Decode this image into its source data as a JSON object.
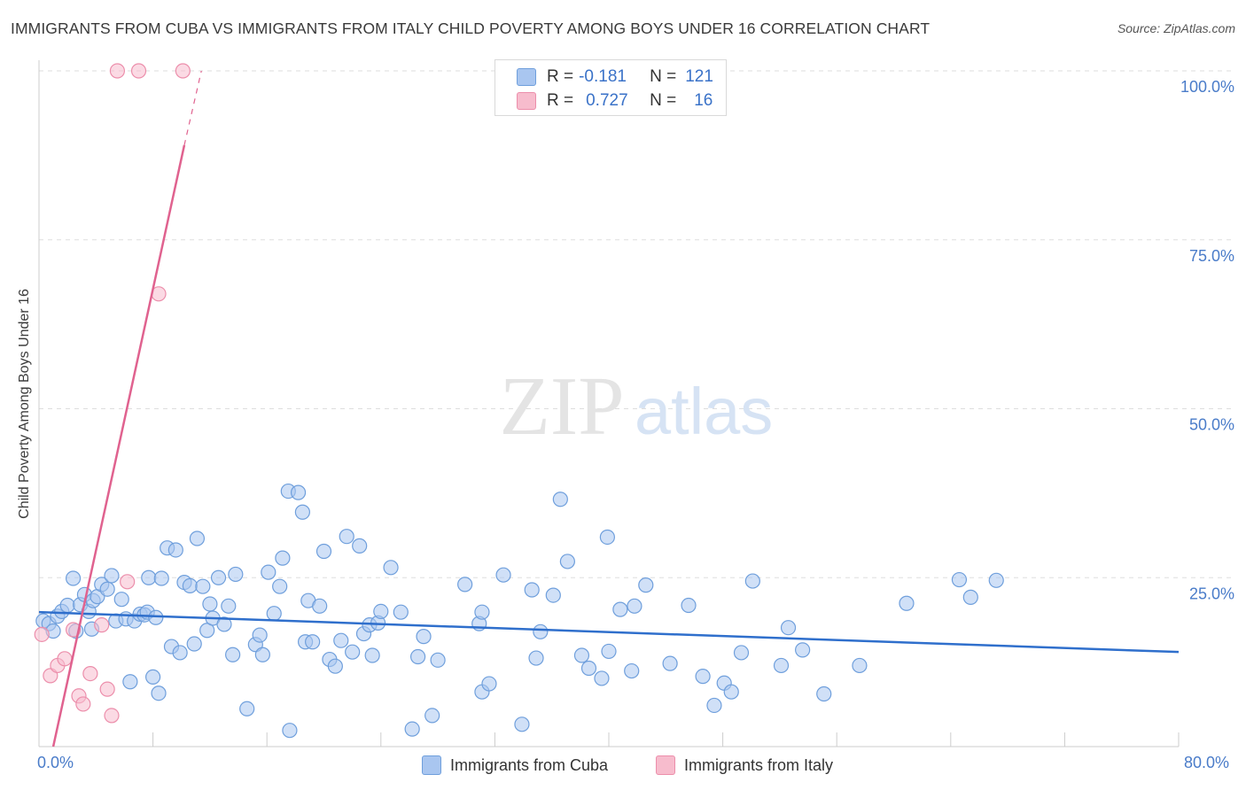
{
  "title": "IMMIGRANTS FROM CUBA VS IMMIGRANTS FROM ITALY CHILD POVERTY AMONG BOYS UNDER 16 CORRELATION CHART",
  "source": "Source: ZipAtlas.com",
  "watermark": {
    "zip": "ZIP",
    "atlas": "atlas"
  },
  "legend": {
    "rows": [
      {
        "r_label": "R = ",
        "r_value": "-0.181",
        "n_label": "N = ",
        "n_value": "121"
      },
      {
        "r_label": "R = ",
        "r_value": "0.727",
        "n_label": "N = ",
        "n_value": "16"
      }
    ],
    "bottom": [
      "Immigrants from Cuba",
      "Immigrants from Italy"
    ]
  },
  "colors": {
    "cuba_fill": "#a9c6f0",
    "cuba_stroke": "#6f9fdc",
    "cuba_line": "#2f6fcc",
    "italy_fill": "#f7bccd",
    "italy_stroke": "#ec8eab",
    "italy_line": "#e0628f",
    "axis_text": "#4a7cc9",
    "grid": "#dddddd"
  },
  "axis": {
    "x_min_label": "0.0%",
    "x_max_label": "80.0%",
    "y_tick_labels": [
      "100.0%",
      "75.0%",
      "50.0%",
      "25.0%"
    ]
  },
  "chart_data": {
    "type": "scatter",
    "title": "IMMIGRANTS FROM CUBA VS IMMIGRANTS FROM ITALY CHILD POVERTY AMONG BOYS UNDER 16 CORRELATION CHART",
    "xlabel": "",
    "ylabel": "Child Poverty Among Boys Under 16",
    "xlim": [
      0,
      80
    ],
    "ylim": [
      0,
      100
    ],
    "y_ticks": [
      25,
      50,
      75,
      100
    ],
    "grid": true,
    "legend_position": "top-center",
    "series": [
      {
        "name": "Immigrants from Cuba",
        "r": -0.181,
        "n": 121,
        "trend": {
          "x": [
            0,
            80
          ],
          "y": [
            19.9,
            14.0
          ]
        },
        "points": [
          [
            0.3,
            18.6
          ],
          [
            0.7,
            18.2
          ],
          [
            1.0,
            17.1
          ],
          [
            1.3,
            19.3
          ],
          [
            1.6,
            20.0
          ],
          [
            2.0,
            20.9
          ],
          [
            2.4,
            24.9
          ],
          [
            2.6,
            17.1
          ],
          [
            2.9,
            21.0
          ],
          [
            3.2,
            22.5
          ],
          [
            3.5,
            20.0
          ],
          [
            3.8,
            21.6
          ],
          [
            4.1,
            22.2
          ],
          [
            4.4,
            24.0
          ],
          [
            4.8,
            23.3
          ],
          [
            5.1,
            25.3
          ],
          [
            5.4,
            18.6
          ],
          [
            5.8,
            21.8
          ],
          [
            6.1,
            18.9
          ],
          [
            6.4,
            9.6
          ],
          [
            6.7,
            18.6
          ],
          [
            7.1,
            19.6
          ],
          [
            7.4,
            19.5
          ],
          [
            7.6,
            19.9
          ],
          [
            7.7,
            25.0
          ],
          [
            8.0,
            10.3
          ],
          [
            8.2,
            19.1
          ],
          [
            8.4,
            7.9
          ],
          [
            8.6,
            24.9
          ],
          [
            9.0,
            29.4
          ],
          [
            9.3,
            14.8
          ],
          [
            9.6,
            29.1
          ],
          [
            9.9,
            13.9
          ],
          [
            10.2,
            24.3
          ],
          [
            10.6,
            23.8
          ],
          [
            10.9,
            15.2
          ],
          [
            11.1,
            30.8
          ],
          [
            11.5,
            23.7
          ],
          [
            11.8,
            17.2
          ],
          [
            12.0,
            21.1
          ],
          [
            12.2,
            19.0
          ],
          [
            12.6,
            25.0
          ],
          [
            13.0,
            18.1
          ],
          [
            13.3,
            20.8
          ],
          [
            13.6,
            13.6
          ],
          [
            13.8,
            25.5
          ],
          [
            14.6,
            5.6
          ],
          [
            15.2,
            15.1
          ],
          [
            15.5,
            16.5
          ],
          [
            15.7,
            13.6
          ],
          [
            16.1,
            25.8
          ],
          [
            16.5,
            19.7
          ],
          [
            16.9,
            23.7
          ],
          [
            17.1,
            27.9
          ],
          [
            17.5,
            37.8
          ],
          [
            17.6,
            2.4
          ],
          [
            18.2,
            37.6
          ],
          [
            18.5,
            34.7
          ],
          [
            18.7,
            15.5
          ],
          [
            18.9,
            21.6
          ],
          [
            19.2,
            15.5
          ],
          [
            19.7,
            20.8
          ],
          [
            20.0,
            28.9
          ],
          [
            20.4,
            12.9
          ],
          [
            20.8,
            11.9
          ],
          [
            21.2,
            15.7
          ],
          [
            21.6,
            31.1
          ],
          [
            22.0,
            14.0
          ],
          [
            22.5,
            29.7
          ],
          [
            22.8,
            16.7
          ],
          [
            23.2,
            18.0
          ],
          [
            23.4,
            13.5
          ],
          [
            23.8,
            18.3
          ],
          [
            24.0,
            20.0
          ],
          [
            24.7,
            26.5
          ],
          [
            25.4,
            19.9
          ],
          [
            26.2,
            2.6
          ],
          [
            26.6,
            13.3
          ],
          [
            27.0,
            16.3
          ],
          [
            27.6,
            4.6
          ],
          [
            28.0,
            12.8
          ],
          [
            29.9,
            24.0
          ],
          [
            30.9,
            18.2
          ],
          [
            31.1,
            19.9
          ],
          [
            31.1,
            8.1
          ],
          [
            31.6,
            9.3
          ],
          [
            32.6,
            25.4
          ],
          [
            33.9,
            3.3
          ],
          [
            34.6,
            23.2
          ],
          [
            34.9,
            13.1
          ],
          [
            35.2,
            17.0
          ],
          [
            36.1,
            22.4
          ],
          [
            36.6,
            36.6
          ],
          [
            37.1,
            27.4
          ],
          [
            38.1,
            13.5
          ],
          [
            38.6,
            11.6
          ],
          [
            39.5,
            10.1
          ],
          [
            39.9,
            31.0
          ],
          [
            40.0,
            14.1
          ],
          [
            40.8,
            20.3
          ],
          [
            41.6,
            11.2
          ],
          [
            41.8,
            20.8
          ],
          [
            42.6,
            23.9
          ],
          [
            44.3,
            12.3
          ],
          [
            45.6,
            20.9
          ],
          [
            46.6,
            10.4
          ],
          [
            47.4,
            6.1
          ],
          [
            48.1,
            9.4
          ],
          [
            48.6,
            8.1
          ],
          [
            49.3,
            13.9
          ],
          [
            50.1,
            24.5
          ],
          [
            52.1,
            12.0
          ],
          [
            52.6,
            17.6
          ],
          [
            53.6,
            14.3
          ],
          [
            55.1,
            7.8
          ],
          [
            57.6,
            12.0
          ],
          [
            60.9,
            21.2
          ],
          [
            64.6,
            24.7
          ],
          [
            65.4,
            22.1
          ],
          [
            67.2,
            24.6
          ],
          [
            3.7,
            17.4
          ]
        ]
      },
      {
        "name": "Immigrants from Italy",
        "r": 0.727,
        "n": 16,
        "trend": {
          "x": [
            1.0,
            10.2
          ],
          "y": [
            0.0,
            89.0
          ]
        },
        "trend_dashed": {
          "x": [
            10.2,
            11.4
          ],
          "y": [
            89.0,
            100.0
          ]
        },
        "points": [
          [
            0.2,
            16.6
          ],
          [
            0.8,
            10.5
          ],
          [
            1.3,
            12.0
          ],
          [
            1.8,
            13.0
          ],
          [
            2.4,
            17.3
          ],
          [
            2.8,
            7.5
          ],
          [
            3.1,
            6.3
          ],
          [
            3.6,
            10.8
          ],
          [
            4.4,
            18.0
          ],
          [
            4.8,
            8.5
          ],
          [
            5.1,
            4.6
          ],
          [
            6.2,
            24.4
          ],
          [
            8.4,
            67.0
          ],
          [
            5.5,
            100.0
          ],
          [
            7.0,
            100.0
          ],
          [
            10.1,
            100.0
          ]
        ]
      }
    ]
  }
}
